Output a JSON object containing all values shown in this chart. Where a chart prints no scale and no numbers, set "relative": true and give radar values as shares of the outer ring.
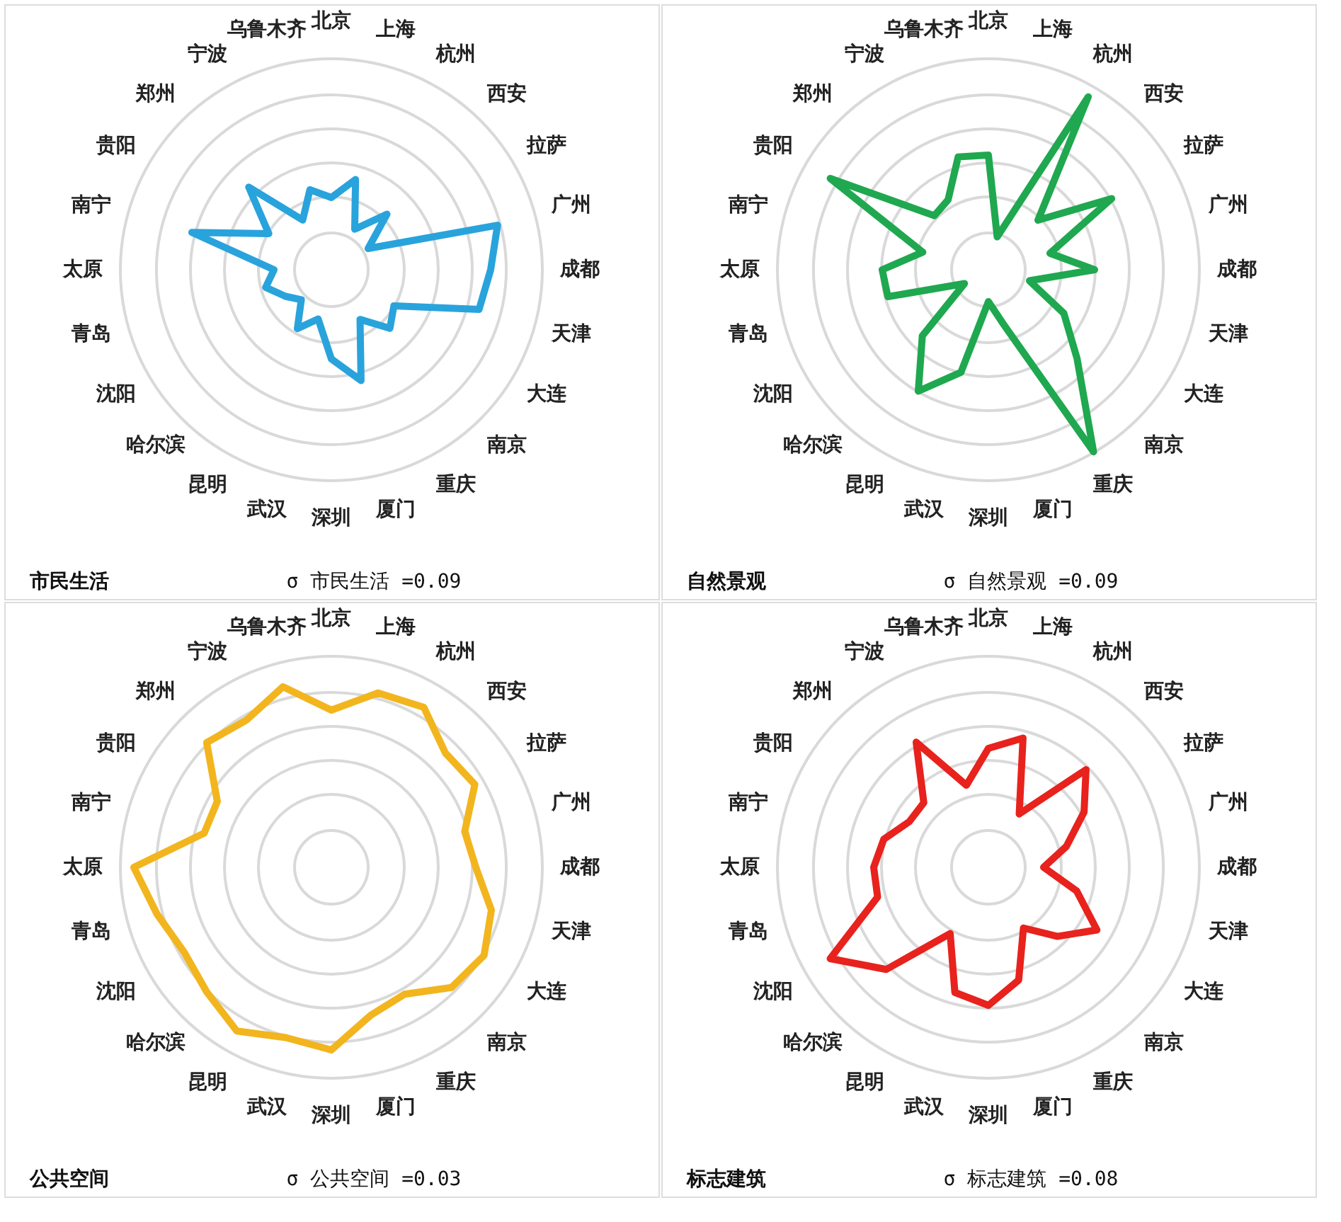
{
  "chart_data": [
    {
      "type": "radar",
      "title": "市民生活",
      "relative": true,
      "annotations": [
        "σ 市民生活 =0.09"
      ],
      "categories": [
        "北京",
        "上海",
        "杭州",
        "西安",
        "拉萨",
        "广州",
        "成都",
        "天津",
        "大连",
        "南京",
        "重庆",
        "厦门",
        "深圳",
        "武汉",
        "昆明",
        "哈尔滨",
        "沈阳",
        "青岛",
        "太原",
        "南宁",
        "贵阳",
        "郑州",
        "宁波",
        "乌鲁木齐"
      ],
      "series": [
        {
          "color": "#29a3dc",
          "values": [
            0.34,
            0.44,
            0.22,
            0.37,
            0.2,
            0.81,
            0.75,
            0.72,
            0.34,
            0.39,
            0.27,
            0.54,
            0.42,
            0.24,
            0.32,
            0.2,
            0.25,
            0.32,
            0.27,
            0.68,
            0.34,
            0.55,
            0.27,
            0.39
          ]
        }
      ]
    },
    {
      "type": "radar",
      "title": "自然景观",
      "relative": true,
      "annotations": [
        "σ 自然景观 =0.09"
      ],
      "categories": [
        "北京",
        "上海",
        "杭州",
        "西安",
        "拉萨",
        "广州",
        "成都",
        "天津",
        "大连",
        "南京",
        "重庆",
        "厦门",
        "深圳",
        "武汉",
        "昆明",
        "哈尔滨",
        "沈阳",
        "青岛",
        "太原",
        "南宁",
        "贵阳",
        "郑州",
        "宁波",
        "乌鲁木齐"
      ],
      "series": [
        {
          "color": "#1fa84f",
          "values": [
            0.54,
            0.16,
            0.94,
            0.33,
            0.67,
            0.3,
            0.5,
            0.2,
            0.41,
            0.59,
            0.99,
            0.26,
            0.15,
            0.5,
            0.66,
            0.44,
            0.13,
            0.49,
            0.5,
            0.32,
            0.86,
            0.36,
            0.38,
            0.55
          ]
        }
      ]
    },
    {
      "type": "radar",
      "title": "公共空间",
      "relative": true,
      "annotations": [
        "σ 公共空间 =0.03"
      ],
      "categories": [
        "北京",
        "上海",
        "杭州",
        "西安",
        "拉萨",
        "广州",
        "成都",
        "天津",
        "大连",
        "南京",
        "重庆",
        "厦门",
        "深圳",
        "武汉",
        "昆明",
        "哈尔滨",
        "沈阳",
        "青岛",
        "太原",
        "南宁",
        "贵阳",
        "郑州",
        "宁波",
        "乌鲁木齐"
      ],
      "series": [
        {
          "color": "#f2b51e",
          "values": [
            0.74,
            0.85,
            0.87,
            0.76,
            0.78,
            0.65,
            0.68,
            0.78,
            0.83,
            0.8,
            0.69,
            0.72,
            0.86,
            0.83,
            0.89,
            0.83,
            0.8,
            0.85,
            0.93,
            0.62,
            0.62,
            0.83,
            0.8,
            0.88
          ]
        }
      ]
    },
    {
      "type": "radar",
      "title": "标志建筑",
      "relative": true,
      "annotations": [
        "σ 标志建筑 =0.08"
      ],
      "categories": [
        "北京",
        "上海",
        "杭州",
        "西安",
        "拉萨",
        "广州",
        "成都",
        "天津",
        "大连",
        "南京",
        "重庆",
        "厦门",
        "深圳",
        "武汉",
        "昆明",
        "哈尔滨",
        "沈阳",
        "青岛",
        "太原",
        "南宁",
        "贵阳",
        "郑州",
        "宁波",
        "乌鲁木齐"
      ],
      "series": [
        {
          "color": "#e8221d",
          "values": [
            0.56,
            0.63,
            0.29,
            0.65,
            0.52,
            0.38,
            0.26,
            0.43,
            0.59,
            0.46,
            0.33,
            0.55,
            0.65,
            0.61,
            0.36,
            0.68,
            0.86,
            0.54,
            0.54,
            0.51,
            0.43,
            0.43,
            0.68,
            0.4
          ]
        }
      ]
    }
  ]
}
